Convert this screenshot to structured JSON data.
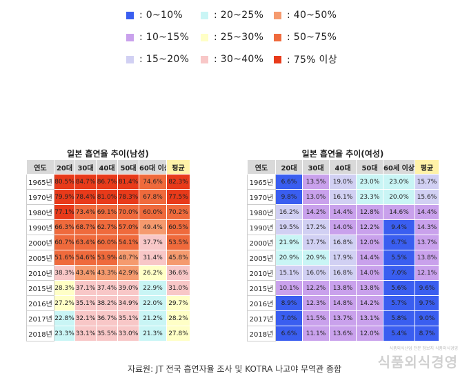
{
  "legend": [
    {
      "label": ":   0~10%",
      "color": "#3a5ef0"
    },
    {
      "label": ": 20~25%",
      "color": "#c9f5f5"
    },
    {
      "label": ": 40~50%",
      "color": "#f59a6e"
    },
    {
      "label": ": 10~15%",
      "color": "#c9a1ec"
    },
    {
      "label": ": 25~30%",
      "color": "#ffffc6"
    },
    {
      "label": ": 50~75%",
      "color": "#ef6a3c"
    },
    {
      "label": ": 15~20%",
      "color": "#d1d0f3"
    },
    {
      "label": ": 30~40%",
      "color": "#f8c7c7"
    },
    {
      "label": ": 75% 이상",
      "color": "#e83a1a"
    }
  ],
  "chart_data": [
    {
      "type": "heatmap",
      "title": "일본 흡연율 추이(남성)",
      "corner_label": "연도",
      "columns": [
        "20대",
        "30대",
        "40대",
        "50대",
        "60대 이상",
        "평균"
      ],
      "rows": [
        "1965년",
        "1970년",
        "1980년",
        "1990년",
        "2000년",
        "2005년",
        "2010년",
        "2015년",
        "2016년",
        "2017년",
        "2018년"
      ],
      "values": [
        [
          80.5,
          84.7,
          86.7,
          81.4,
          74.6,
          82.3
        ],
        [
          79.9,
          78.4,
          81.0,
          78.3,
          67.8,
          77.5
        ],
        [
          77.1,
          73.4,
          69.1,
          70.0,
          60.0,
          70.2
        ],
        [
          66.3,
          68.7,
          62.7,
          57.0,
          49.4,
          60.5
        ],
        [
          60.7,
          63.4,
          60.0,
          54.1,
          37.7,
          53.5
        ],
        [
          51.6,
          54.6,
          53.9,
          48.7,
          31.4,
          45.8
        ],
        [
          38.3,
          43.4,
          43.3,
          42.9,
          26.2,
          36.6
        ],
        [
          28.3,
          37.1,
          37.4,
          39.0,
          22.9,
          31.0
        ],
        [
          27.2,
          35.1,
          38.2,
          34.9,
          22.0,
          29.7
        ],
        [
          22.8,
          32.1,
          36.7,
          35.1,
          21.2,
          28.2
        ],
        [
          23.3,
          33.1,
          35.5,
          33.0,
          21.3,
          27.8
        ]
      ]
    },
    {
      "type": "heatmap",
      "title": "일본 흡연율 추이(여성)",
      "corner_label": "연도",
      "columns": [
        "20대",
        "30대",
        "40대",
        "50대",
        "60세 이상",
        "평균"
      ],
      "rows": [
        "1965년",
        "1970년",
        "1980년",
        "1990년",
        "2000년",
        "2005년",
        "2010년",
        "2015년",
        "2016년",
        "2017년",
        "2018년"
      ],
      "values": [
        [
          6.6,
          13.5,
          19.0,
          23.0,
          23.0,
          15.7
        ],
        [
          9.8,
          13.0,
          16.1,
          23.3,
          20.0,
          15.6
        ],
        [
          16.2,
          14.2,
          14.4,
          12.8,
          14.6,
          14.4
        ],
        [
          19.5,
          17.2,
          14.0,
          12.2,
          9.4,
          14.3
        ],
        [
          21.9,
          17.7,
          16.8,
          12.0,
          6.7,
          13.7
        ],
        [
          20.9,
          20.9,
          17.9,
          14.4,
          5.5,
          13.8
        ],
        [
          15.1,
          16.0,
          16.8,
          14.0,
          7.0,
          12.1
        ],
        [
          10.1,
          12.2,
          13.8,
          13.8,
          5.6,
          9.6
        ],
        [
          8.9,
          12.3,
          14.8,
          14.2,
          5.7,
          9.7
        ],
        [
          7.0,
          11.5,
          13.7,
          13.1,
          5.8,
          9.0
        ],
        [
          6.6,
          11.1,
          13.6,
          12.0,
          5.4,
          8.7
        ]
      ]
    }
  ],
  "source": "자료원: JT 전국 흡연자율 조사 및 KOTRA 나고야 무역관 종합",
  "watermark": {
    "sub": "식품외식산업 전문 정보지 식품외식경영",
    "main": "식품외식경영"
  }
}
